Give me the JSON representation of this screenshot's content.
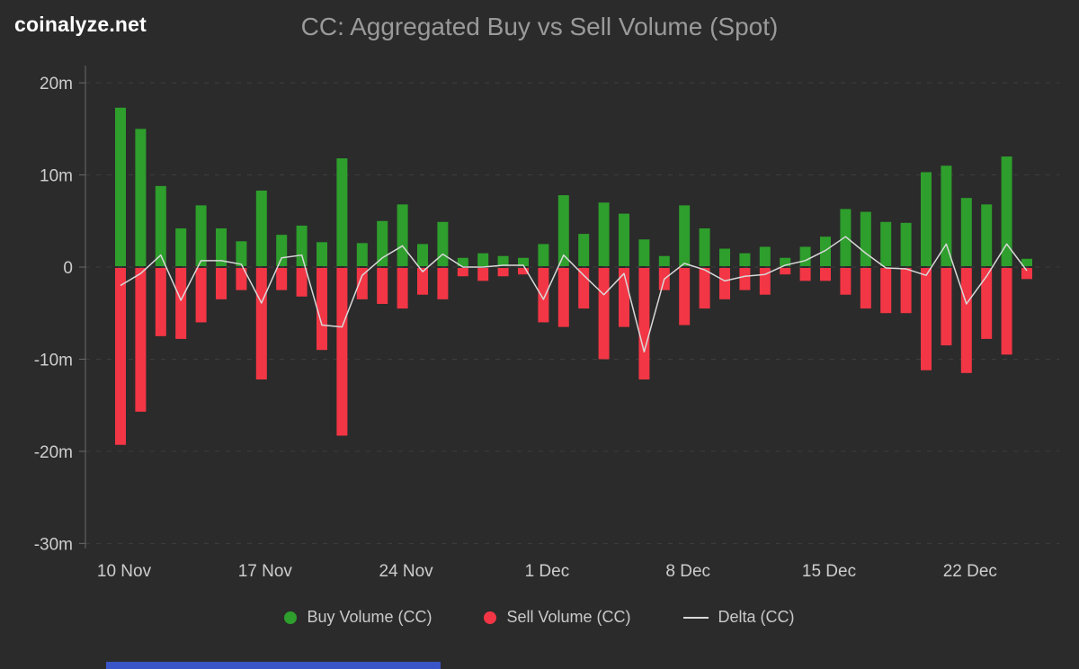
{
  "brand": {
    "logo": "coinalyze.net"
  },
  "colors": {
    "background": "#2b2b2b",
    "buy": "#2e9e2c",
    "sell": "#f23645",
    "delta_line": "#d9d9d9",
    "title_text": "#9a9a9a",
    "axis_text": "#cdcdcd",
    "grid": "#3e3e3e",
    "axis_line": "#6a6a6a",
    "bottom_bar": "#3a55c8"
  },
  "chart_data": {
    "type": "bar",
    "title": "CC: Aggregated Buy vs Sell Volume (Spot)",
    "unit": "millions",
    "categories": [
      "10 Nov",
      "11 Nov",
      "12 Nov",
      "13 Nov",
      "14 Nov",
      "15 Nov",
      "16 Nov",
      "17 Nov",
      "18 Nov",
      "19 Nov",
      "20 Nov",
      "21 Nov",
      "22 Nov",
      "23 Nov",
      "24 Nov",
      "25 Nov",
      "26 Nov",
      "27 Nov",
      "28 Nov",
      "29 Nov",
      "30 Nov",
      "1 Dec",
      "2 Dec",
      "3 Dec",
      "4 Dec",
      "5 Dec",
      "6 Dec",
      "7 Dec",
      "8 Dec",
      "9 Dec",
      "10 Dec",
      "11 Dec",
      "12 Dec",
      "13 Dec",
      "14 Dec",
      "15 Dec",
      "16 Dec",
      "17 Dec",
      "18 Dec",
      "19 Dec",
      "20 Dec",
      "21 Dec",
      "22 Dec",
      "23 Dec",
      "24 Dec",
      "25 Dec"
    ],
    "series": [
      {
        "name": "Buy Volume (CC)",
        "type": "bar",
        "color": "#2e9e2c",
        "values": [
          17.3,
          15.0,
          8.8,
          4.2,
          6.7,
          4.2,
          2.8,
          8.3,
          3.5,
          4.5,
          2.7,
          11.8,
          2.6,
          5.0,
          6.8,
          2.5,
          4.9,
          1.0,
          1.5,
          1.2,
          1.0,
          2.5,
          7.8,
          3.6,
          7.0,
          5.8,
          3.0,
          1.2,
          6.7,
          4.2,
          2.0,
          1.5,
          2.2,
          1.0,
          2.2,
          3.3,
          6.3,
          6.0,
          4.9,
          4.8,
          10.3,
          11.0,
          7.5,
          6.8,
          12.0,
          0.9
        ]
      },
      {
        "name": "Sell Volume (CC)",
        "type": "bar",
        "color": "#f23645",
        "values": [
          -19.3,
          -15.7,
          -7.5,
          -7.8,
          -6.0,
          -3.5,
          -2.5,
          -12.2,
          -2.5,
          -3.2,
          -9.0,
          -18.3,
          -3.5,
          -4.0,
          -4.5,
          -3.0,
          -3.5,
          -1.0,
          -1.5,
          -1.0,
          -0.8,
          -6.0,
          -6.5,
          -4.5,
          -10.0,
          -6.5,
          -12.2,
          -2.5,
          -6.3,
          -4.5,
          -3.5,
          -2.5,
          -3.0,
          -0.8,
          -1.5,
          -1.5,
          -3.0,
          -4.5,
          -5.0,
          -5.0,
          -11.2,
          -8.5,
          -11.5,
          -7.8,
          -9.5,
          -1.3
        ]
      },
      {
        "name": "Delta (CC)",
        "type": "line",
        "color": "#d9d9d9",
        "values": [
          -2.0,
          -0.7,
          1.3,
          -3.6,
          0.7,
          0.7,
          0.3,
          -3.9,
          1.0,
          1.3,
          -6.3,
          -6.5,
          -0.9,
          1.0,
          2.3,
          -0.5,
          1.4,
          0.0,
          0.0,
          0.2,
          0.2,
          -3.5,
          1.3,
          -0.9,
          -3.0,
          -0.7,
          -9.2,
          -1.3,
          0.4,
          -0.3,
          -1.5,
          -1.0,
          -0.8,
          0.2,
          0.7,
          1.8,
          3.3,
          1.5,
          -0.1,
          -0.2,
          -0.9,
          2.5,
          -4.0,
          -1.0,
          2.5,
          -0.4
        ]
      }
    ],
    "x_axis": {
      "tick_labels": [
        "10 Nov",
        "17 Nov",
        "24 Nov",
        "1 Dec",
        "8 Dec",
        "15 Dec",
        "22 Dec"
      ],
      "tick_indices": [
        0,
        7,
        14,
        21,
        28,
        35,
        42
      ]
    },
    "y_axis": {
      "tick_labels": [
        "20m",
        "10m",
        "0",
        "-10m",
        "-20m",
        "-30m"
      ],
      "tick_values": [
        20,
        10,
        0,
        -10,
        -20,
        -30
      ],
      "range": [
        -30,
        21
      ]
    },
    "legend_position": "bottom",
    "grid": "dashed-horizontal"
  }
}
